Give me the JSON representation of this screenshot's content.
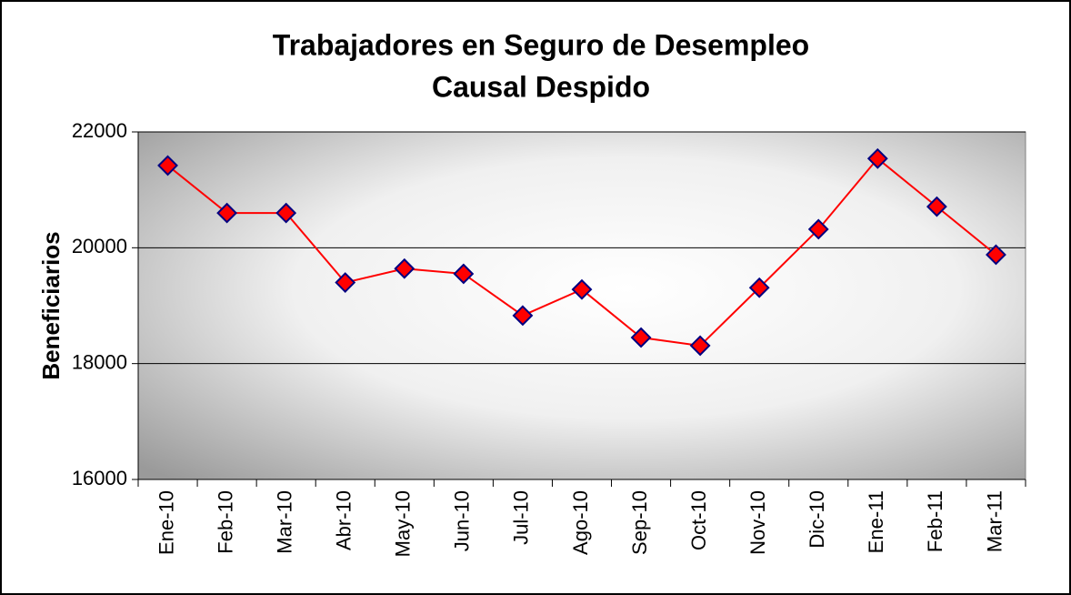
{
  "chart_data": {
    "type": "line",
    "title": "Trabajadores en Seguro de Desempleo",
    "subtitle": "Causal Despido",
    "y_label": "Beneficiarios",
    "categories": [
      "Ene-10",
      "Feb-10",
      "Mar-10",
      "Abr-10",
      "May-10",
      "Jun-10",
      "Jul-10",
      "Ago-10",
      "Sep-10",
      "Oct-10",
      "Nov-10",
      "Dic-10",
      "Ene-11",
      "Feb-11",
      "Mar-11"
    ],
    "values": [
      21420,
      20600,
      20600,
      19400,
      19640,
      19550,
      18830,
      19280,
      18450,
      18310,
      19310,
      20320,
      21540,
      20710,
      19880
    ],
    "color": "#ff0000",
    "marker_color": "#ff0000",
    "marker_edge_color": "#000080",
    "ylim": [
      16000,
      22000
    ],
    "yticks": [
      16000,
      18000,
      20000,
      22000
    ],
    "grid": true
  }
}
